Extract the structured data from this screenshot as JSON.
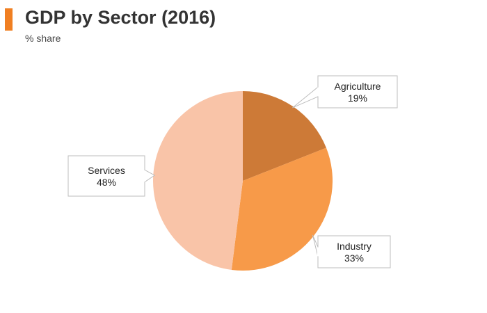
{
  "header": {
    "title": "GDP by Sector (2016)",
    "subtitle": "% share",
    "accent_color": "#f07f22"
  },
  "chart_data": {
    "type": "pie",
    "title": "GDP by Sector (2016)",
    "subtitle": "% share",
    "slices": [
      {
        "label": "Agriculture",
        "value": 19,
        "value_label": "19%",
        "color": "#cd7a37"
      },
      {
        "label": "Industry",
        "value": 33,
        "value_label": "33%",
        "color": "#f79a49"
      },
      {
        "label": "Services",
        "value": 48,
        "value_label": "48%",
        "color": "#f9c4a8"
      }
    ],
    "start": "12 o'clock",
    "direction": "clockwise",
    "labels": "callouts"
  }
}
